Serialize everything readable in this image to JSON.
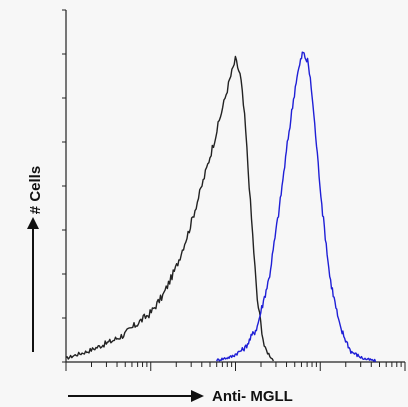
{
  "chart_data": {
    "type": "line",
    "title": "",
    "xlabel": "Anti- MGLL",
    "ylabel": "# Cells",
    "x_scale": "log",
    "xlim": [
      1,
      10000
    ],
    "ylim": [
      0,
      100
    ],
    "grid": false,
    "legend": "none",
    "series": [
      {
        "color": "#222222",
        "x": [
          1,
          1.3,
          1.8,
          2.5,
          3.5,
          5,
          7,
          10,
          14,
          20,
          28,
          40,
          55,
          70,
          85,
          100,
          115,
          130,
          150,
          180,
          220,
          280
        ],
        "y": [
          1,
          2,
          3,
          4.5,
          6,
          8,
          11,
          14,
          19,
          27,
          37,
          50,
          62,
          72,
          80,
          86,
          81,
          68,
          45,
          18,
          4,
          0.5
        ]
      },
      {
        "color": "#1f1fd6",
        "x": [
          60,
          90,
          130,
          180,
          250,
          330,
          420,
          520,
          620,
          720,
          800,
          900,
          1050,
          1300,
          1700,
          2300,
          3200,
          4500
        ],
        "y": [
          0.5,
          1.5,
          4,
          10,
          24,
          44,
          64,
          80,
          88,
          85,
          76,
          62,
          44,
          24,
          10,
          3,
          1,
          0.3
        ]
      }
    ]
  }
}
